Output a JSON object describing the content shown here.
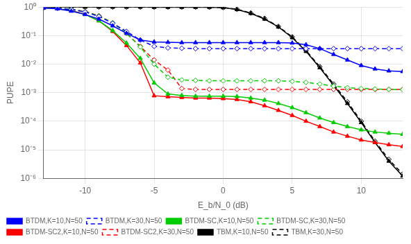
{
  "chart_data": {
    "type": "line",
    "title": "",
    "xlabel": "E_b/N_0 (dB)",
    "ylabel": "PUPE",
    "log": "y",
    "grid": true,
    "legend": "lower left",
    "xlim": [
      -13,
      13
    ],
    "xticks": [
      -10,
      -5,
      0,
      5,
      10
    ],
    "ylim": [
      1e-06,
      1
    ],
    "yticks": [
      {
        "value": 1e-06,
        "label": "10⁻⁶"
      },
      {
        "value": 1e-05,
        "label": "10⁻⁵"
      },
      {
        "value": 0.0001,
        "label": "10⁻⁴"
      },
      {
        "value": 0.001,
        "label": "10⁻³"
      },
      {
        "value": 0.01,
        "label": "10⁻²"
      },
      {
        "value": 0.1,
        "label": "10⁻¹"
      },
      {
        "value": 1,
        "label": "10⁰"
      }
    ],
    "x": [
      -13,
      -12,
      -11,
      -10,
      -9,
      -8,
      -7,
      -6,
      -5,
      -4,
      -3,
      -2,
      -1,
      0,
      1,
      2,
      3,
      4,
      5,
      6,
      7,
      8,
      9,
      10,
      11,
      12,
      13
    ],
    "series": [
      {
        "name": "BTDM,K=10,N=50",
        "color": "#0000FF",
        "line_style": "solid",
        "marker": "triangle",
        "values": [
          0.93,
          0.87,
          0.72,
          0.55,
          0.38,
          0.22,
          0.12,
          0.07,
          0.06,
          0.058,
          0.057,
          0.057,
          0.057,
          0.057,
          0.057,
          0.057,
          0.057,
          0.057,
          0.055,
          0.048,
          0.035,
          0.022,
          0.014,
          0.009,
          0.0068,
          0.0058,
          0.0055
        ]
      },
      {
        "name": "BTDM,K=30,N=50",
        "color": "#0000FF",
        "line_style": "dashed",
        "marker": "open_diamond",
        "values": [
          0.95,
          0.91,
          0.82,
          0.67,
          0.47,
          0.27,
          0.14,
          0.07,
          0.042,
          0.037,
          0.036,
          0.035,
          0.035,
          0.035,
          0.035,
          0.035,
          0.035,
          0.035,
          0.035,
          0.035,
          0.035,
          0.035,
          0.035,
          0.035,
          0.035,
          0.035,
          0.035
        ]
      },
      {
        "name": "BTDM-SC,K=10,N=50",
        "color": "#00CC00",
        "line_style": "solid",
        "marker": "triangle",
        "values": [
          0.94,
          0.88,
          0.74,
          0.55,
          0.33,
          0.15,
          0.055,
          0.016,
          0.0022,
          0.0009,
          0.0008,
          0.00075,
          0.00075,
          0.00075,
          0.00073,
          0.00065,
          0.00055,
          0.00042,
          0.0003,
          0.0002,
          0.00013,
          9e-05,
          6.5e-05,
          5e-05,
          4.2e-05,
          3.8e-05,
          3.5e-05
        ]
      },
      {
        "name": "BTDM-SC,K=30,N=50",
        "color": "#00CC00",
        "line_style": "dashed",
        "marker": "open_diamond",
        "values": [
          0.96,
          0.92,
          0.84,
          0.69,
          0.49,
          0.28,
          0.12,
          0.04,
          0.01,
          0.0035,
          0.0028,
          0.0027,
          0.0026,
          0.0026,
          0.0026,
          0.0026,
          0.0026,
          0.0026,
          0.0025,
          0.0023,
          0.002,
          0.0017,
          0.0015,
          0.0014,
          0.00135,
          0.0013,
          0.00128
        ]
      },
      {
        "name": "BTDM-SC2,K=10,N=50",
        "color": "#FF0000",
        "line_style": "solid",
        "marker": "triangle",
        "values": [
          0.94,
          0.88,
          0.75,
          0.56,
          0.33,
          0.14,
          0.045,
          0.011,
          0.00078,
          0.00072,
          0.00068,
          0.00065,
          0.00065,
          0.00062,
          0.00058,
          0.00048,
          0.00035,
          0.00024,
          0.00016,
          0.0001,
          6.5e-05,
          4.2e-05,
          3e-05,
          2.2e-05,
          1.8e-05,
          1.5e-05,
          1.3e-05
        ]
      },
      {
        "name": "BTDM-SC2,K=30,N=50",
        "color": "#FF0000",
        "line_style": "dashed",
        "marker": "open_diamond",
        "values": [
          0.96,
          0.92,
          0.84,
          0.7,
          0.5,
          0.28,
          0.12,
          0.042,
          0.014,
          0.0062,
          0.0014,
          0.0013,
          0.0013,
          0.0013,
          0.0013,
          0.0013,
          0.0013,
          0.0013,
          0.0013,
          0.0013,
          0.0013,
          0.0013,
          0.0013,
          0.0013,
          0.0013,
          0.0013,
          0.0013
        ]
      },
      {
        "name": "TBM,K=10,N=50",
        "color": "#000000",
        "line_style": "solid",
        "marker": "triangle",
        "values": [
          1.0,
          1.0,
          1.0,
          1.0,
          1.0,
          1.0,
          1.0,
          1.0,
          0.99,
          0.99,
          0.99,
          0.99,
          0.99,
          0.95,
          0.82,
          0.6,
          0.38,
          0.2,
          0.085,
          0.028,
          0.0075,
          0.0018,
          0.00042,
          9e-05,
          1.8e-05,
          4e-06,
          1.2e-06
        ]
      },
      {
        "name": "TBM,K=30,N=50",
        "color": "#000000",
        "line_style": "dashed",
        "marker": "open_diamond",
        "values": [
          1.0,
          1.0,
          1.0,
          1.0,
          1.0,
          1.0,
          1.0,
          1.0,
          1.0,
          1.0,
          1.0,
          1.0,
          0.99,
          0.96,
          0.84,
          0.62,
          0.4,
          0.21,
          0.09,
          0.03,
          0.0082,
          0.002,
          0.00048,
          0.0001,
          2e-05,
          4.6e-06,
          1.4e-06
        ]
      }
    ]
  }
}
